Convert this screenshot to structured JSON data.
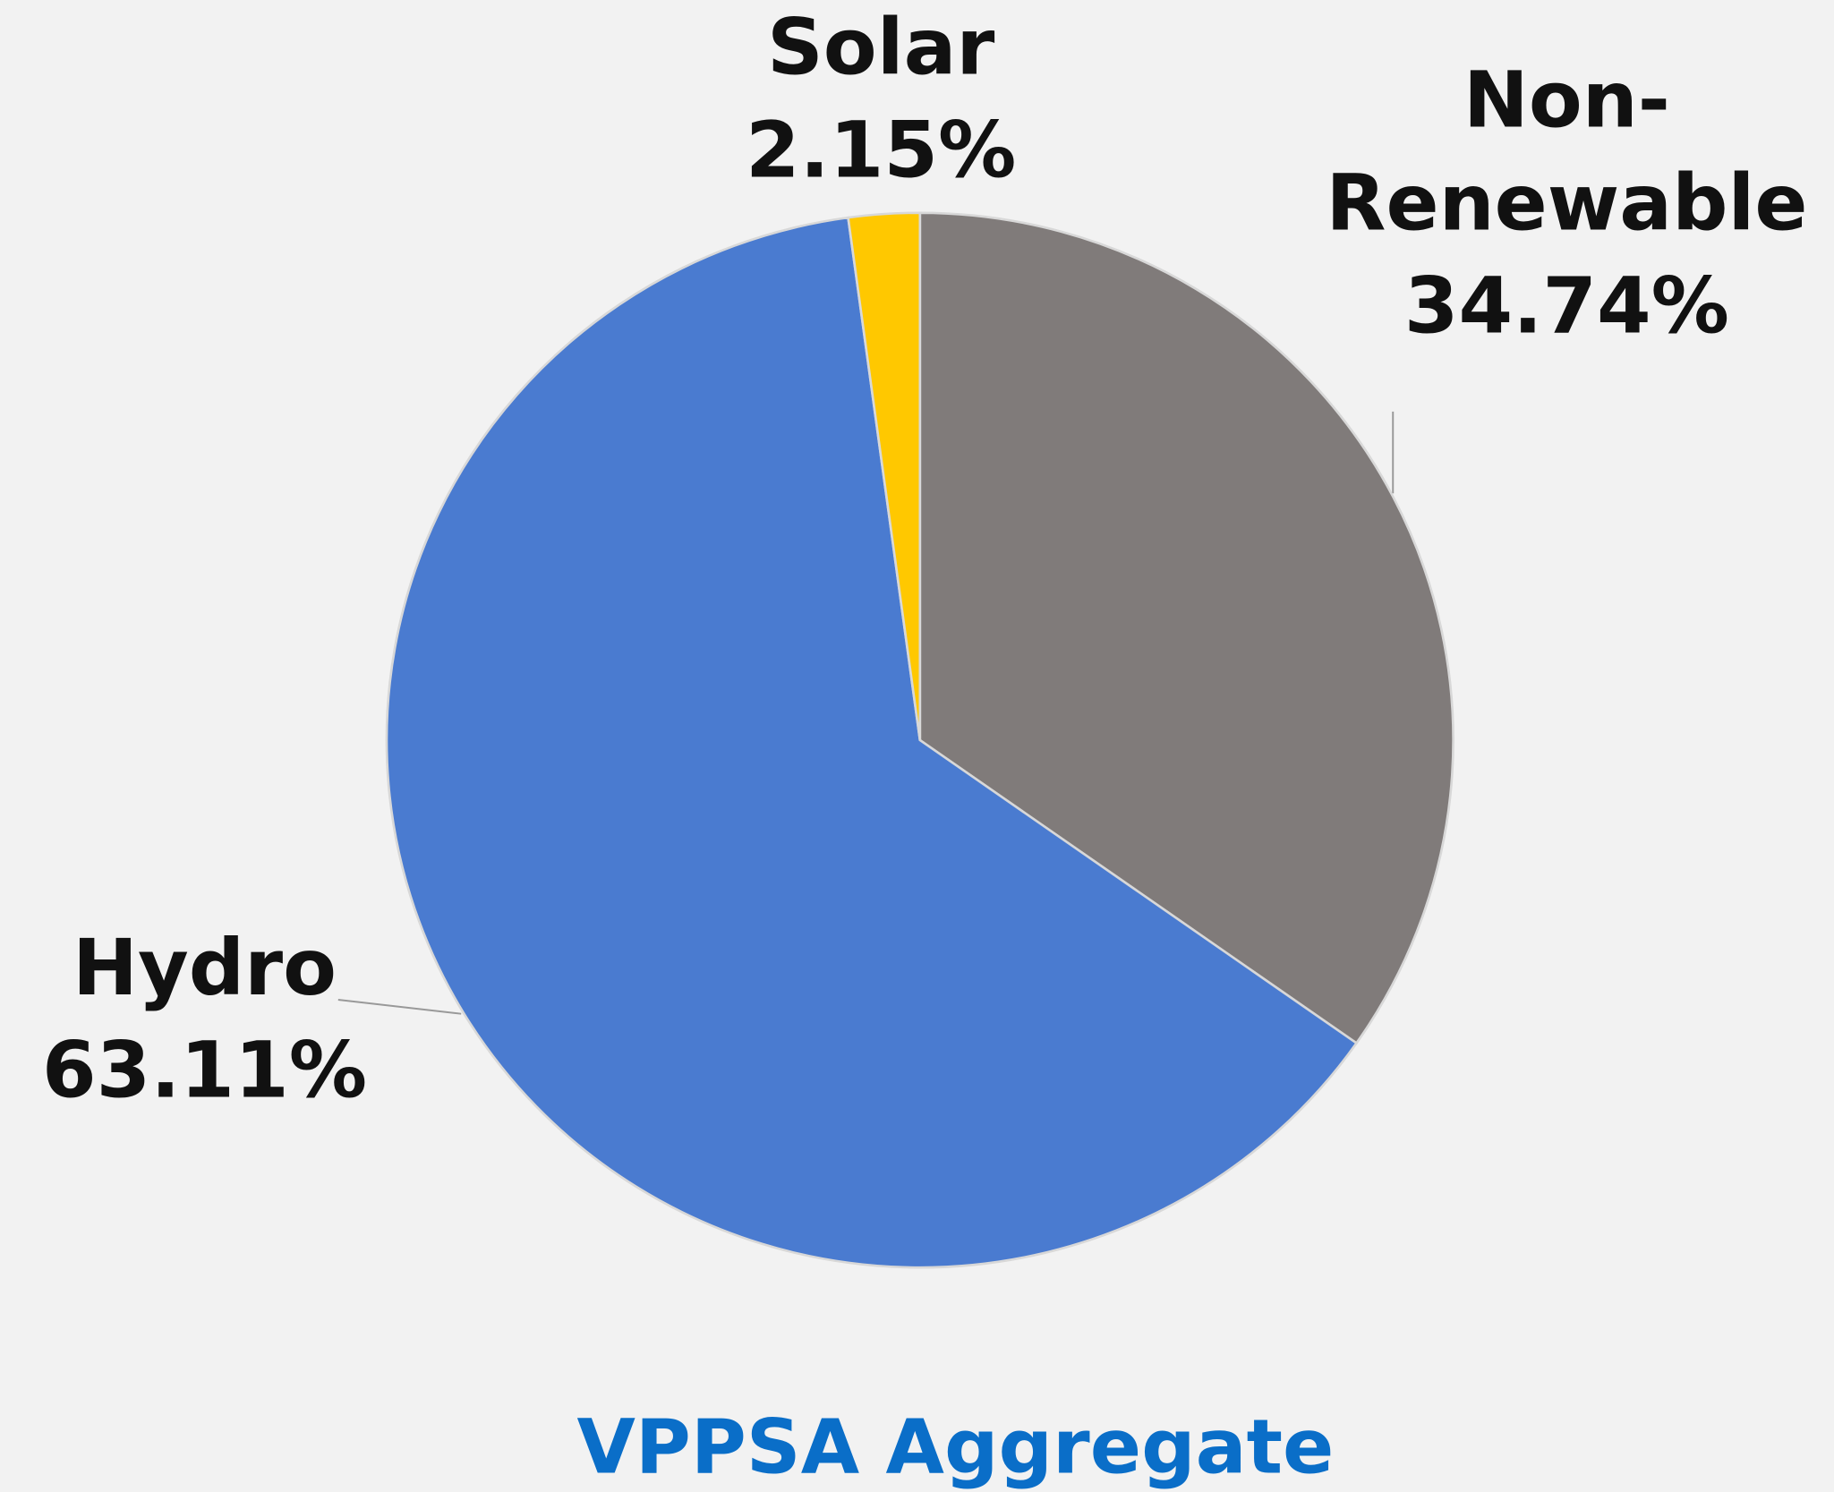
{
  "chart_data": {
    "type": "pie",
    "title": "VPPSA Aggregate",
    "categories": [
      "Non-Renewable",
      "Hydro",
      "Solar"
    ],
    "values": [
      34.74,
      63.11,
      2.15
    ],
    "value_labels": [
      "34.74%",
      "63.11%",
      "2.15%"
    ],
    "colors": [
      "#807b7a",
      "#4a7bd0",
      "#ffc800"
    ]
  }
}
